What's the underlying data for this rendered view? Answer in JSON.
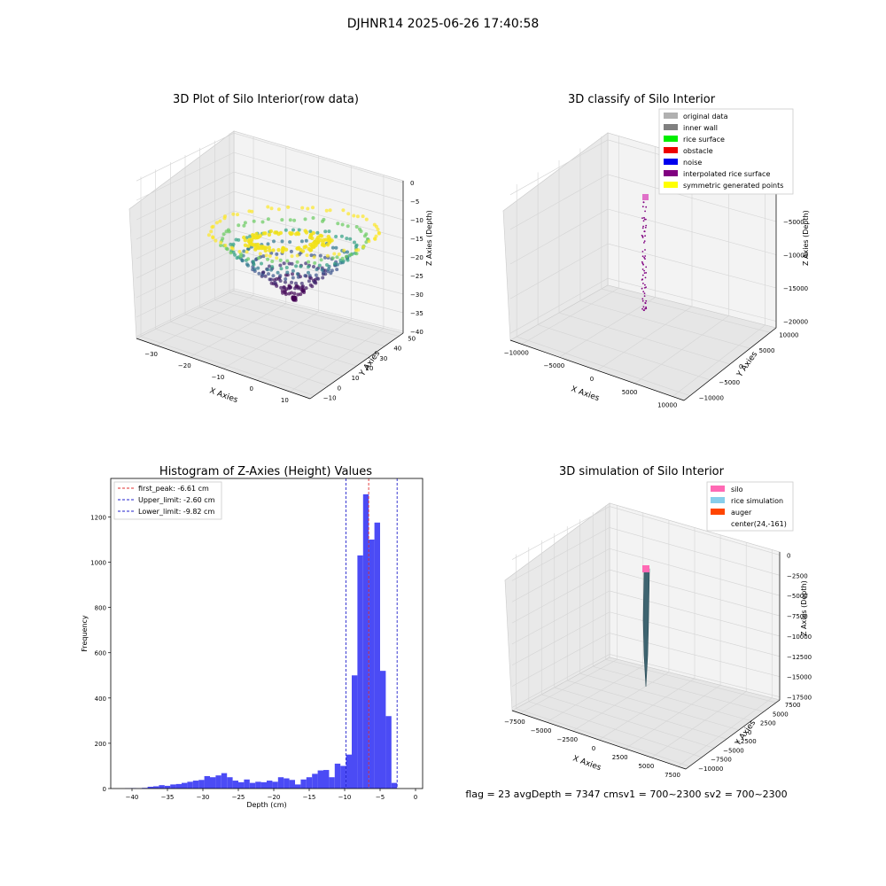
{
  "figure": {
    "suptitle": "DJHNR14 2025-06-26 17:40:58",
    "status_line": "flag = 23   avgDepth = 7347 cmsv1 = 700~2300  sv2 = 700~2300"
  },
  "colors": {
    "hist_bar": "#4b4bf5",
    "peak_line": "#e03030",
    "limit_line": "#2222cc",
    "pane": "#efefef",
    "grid": "#d0d0d0"
  },
  "chart_data": [
    {
      "type": "scatter3d",
      "title": "3D Plot of Silo Interior(row data)",
      "xlabel": "X Axies",
      "ylabel": "Y Axies",
      "zlabel": "Z Axies (Depth)",
      "xticks": [
        "−30",
        "−20",
        "−10",
        "0",
        "10"
      ],
      "yticks": [
        "−10",
        "0",
        "10",
        "20",
        "30",
        "40",
        "50"
      ],
      "zticks": [
        "0",
        "−5",
        "−10",
        "−15",
        "−20",
        "−25",
        "−30",
        "−35",
        "−40"
      ],
      "xlim": [
        -35,
        18
      ],
      "ylim": [
        -10,
        50
      ],
      "zlim": [
        -42,
        2
      ],
      "colormap": "viridis (by depth)",
      "description_of_points": "bowl-shaped cloud; rim around z≈-15..-20, center bottom z≈-40"
    },
    {
      "type": "scatter3d",
      "title": "3D classify of Silo Interior",
      "xlabel": "X Axies",
      "ylabel": "Y Axies",
      "zlabel": "Z Axies (Depth)",
      "xticks": [
        "−10000",
        "−5000",
        "0",
        "5000",
        "10000"
      ],
      "yticks": [
        "−10000",
        "−5000",
        "0",
        "5000",
        "10000"
      ],
      "zticks": [
        "0",
        "−5000",
        "−10000",
        "−15000",
        "−20000"
      ],
      "legend": [
        {
          "label": "original data",
          "color": "#b0b0b0"
        },
        {
          "label": "inner wall",
          "color": "#808080"
        },
        {
          "label": "rice surface",
          "color": "#00ee00"
        },
        {
          "label": "obstacle",
          "color": "#ee0000"
        },
        {
          "label": "noise",
          "color": "#0000ee"
        },
        {
          "label": "interpolated rice surface",
          "color": "#800080"
        },
        {
          "label": "symmetric generated points",
          "color": "#ffff00"
        }
      ],
      "legend_loc": "upper right"
    },
    {
      "type": "bar",
      "title": "Histogram of Z-Axies (Height) Values",
      "xlabel": "Depth (cm)",
      "ylabel": "Frequency",
      "xlim": [
        -43,
        1
      ],
      "ylim": [
        0,
        1370
      ],
      "xticks": [
        -40,
        -35,
        -30,
        -25,
        -20,
        -15,
        -10,
        -5,
        0
      ],
      "xtick_labels": [
        "−40",
        "−35",
        "−30",
        "−25",
        "−20",
        "−15",
        "−10",
        "−5",
        "0"
      ],
      "yticks": [
        0,
        200,
        400,
        600,
        800,
        1000,
        1200
      ],
      "yticks_labels": [
        "0",
        "200",
        "400",
        "600",
        "800",
        "1000",
        "1200"
      ],
      "bin_start": -41.0,
      "bin_width": 0.8,
      "values": [
        1,
        2,
        1,
        3,
        8,
        10,
        15,
        12,
        18,
        20,
        25,
        30,
        35,
        38,
        55,
        50,
        58,
        68,
        50,
        35,
        28,
        40,
        25,
        30,
        28,
        35,
        30,
        50,
        45,
        38,
        18,
        40,
        50,
        65,
        80,
        82,
        50,
        110,
        100,
        150,
        500,
        1030,
        1300,
        1100,
        1175,
        520,
        320,
        25
      ],
      "vlines": [
        {
          "label": "first_peak: -6.61 cm",
          "x": -6.61,
          "style": "red"
        },
        {
          "label": "Upper_limit: -2.60 cm",
          "x": -2.6,
          "style": "blue"
        },
        {
          "label": "Lower_limit: -9.82 cm",
          "x": -9.82,
          "style": "blue"
        }
      ],
      "legend_loc": "upper left"
    },
    {
      "type": "surface3d",
      "title": "3D simulation of Silo Interior",
      "xlabel": "X Axies",
      "ylabel": "Y Axies",
      "zlabel": "Z Axies (Depth)",
      "xticks": [
        "−7500",
        "−5000",
        "−2500",
        "0",
        "2500",
        "5000",
        "7500"
      ],
      "yticks": [
        "−10000",
        "−7500",
        "−5000",
        "−2500",
        "0",
        "2500",
        "5000",
        "7500"
      ],
      "zticks": [
        "0",
        "−2500",
        "−5000",
        "−7500",
        "−10000",
        "−12500",
        "−15000",
        "−17500"
      ],
      "legend": [
        {
          "label": "silo",
          "color": "#ff69b4"
        },
        {
          "label": "rice simulation",
          "color": "#87ceeb"
        },
        {
          "label": "auger",
          "color": "#ff4500"
        },
        {
          "label": "center(24,-161)",
          "color": ""
        }
      ],
      "legend_loc": "upper right"
    }
  ]
}
